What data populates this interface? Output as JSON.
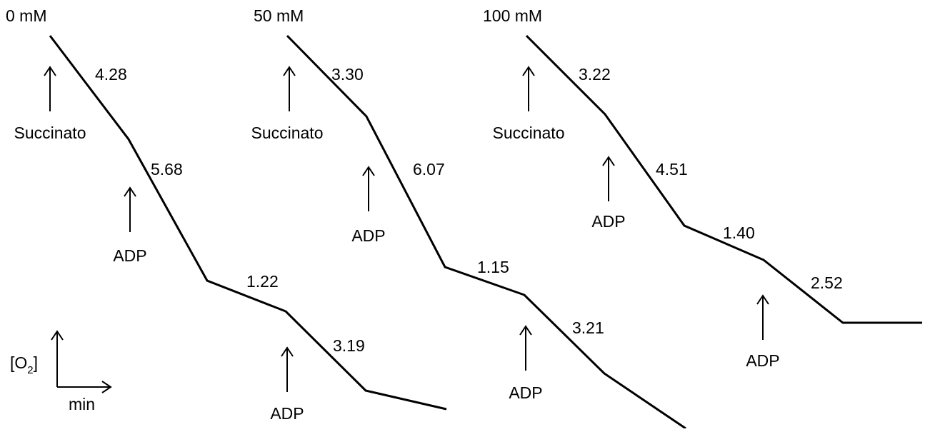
{
  "panels": [
    {
      "title": "0 mM",
      "rates": [
        "4.28",
        "5.68",
        "1.22",
        "3.19"
      ],
      "additions": [
        "Succinato",
        "ADP",
        "ADP"
      ]
    },
    {
      "title": "50 mM",
      "rates": [
        "3.30",
        "6.07",
        "1.15",
        "3.21"
      ],
      "additions": [
        "Succinato",
        "ADP",
        "ADP"
      ]
    },
    {
      "title": "100 mM",
      "rates": [
        "3.22",
        "4.51",
        "1.40",
        "2.52"
      ],
      "additions": [
        "Succinato",
        "ADP",
        "ADP"
      ]
    }
  ],
  "axes": {
    "y_label_open": "[O",
    "y_label_sub": "2",
    "y_label_close": "]",
    "x_label": "min"
  },
  "colors": {
    "stroke": "#000000",
    "background": "#ffffff"
  }
}
